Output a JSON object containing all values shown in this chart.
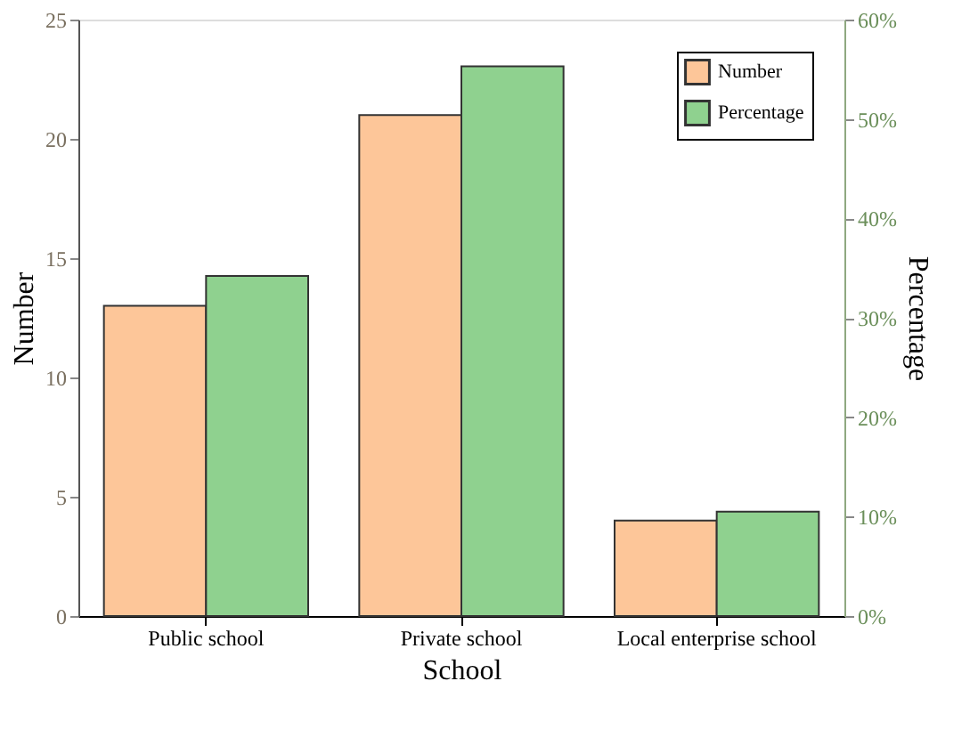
{
  "chart_data": {
    "type": "bar",
    "xlabel": "School",
    "ylabel": "Number",
    "y2label": "Percentage",
    "categories": [
      "Public school",
      "Private school",
      "Local enterprise school"
    ],
    "series": [
      {
        "name": "Number",
        "color": "#fdc699",
        "values": [
          13,
          21,
          4
        ]
      },
      {
        "name": "Percentage",
        "color": "#8fd18f",
        "values": [
          34.2,
          55.3,
          10.5
        ],
        "axis": "y2"
      }
    ],
    "ylim": [
      0,
      25
    ],
    "yticks": [
      0,
      5,
      10,
      15,
      20,
      25
    ],
    "y2lim": [
      0,
      60
    ],
    "y2ticks": [
      {
        "value": 0,
        "label": "0%"
      },
      {
        "value": 10,
        "label": "10%"
      },
      {
        "value": 20,
        "label": "20%"
      },
      {
        "value": 30,
        "label": "30%"
      },
      {
        "value": 40,
        "label": "40%"
      },
      {
        "value": 50,
        "label": "50%"
      },
      {
        "value": 60,
        "label": "60%"
      }
    ],
    "grid": false,
    "legend": "top right"
  }
}
